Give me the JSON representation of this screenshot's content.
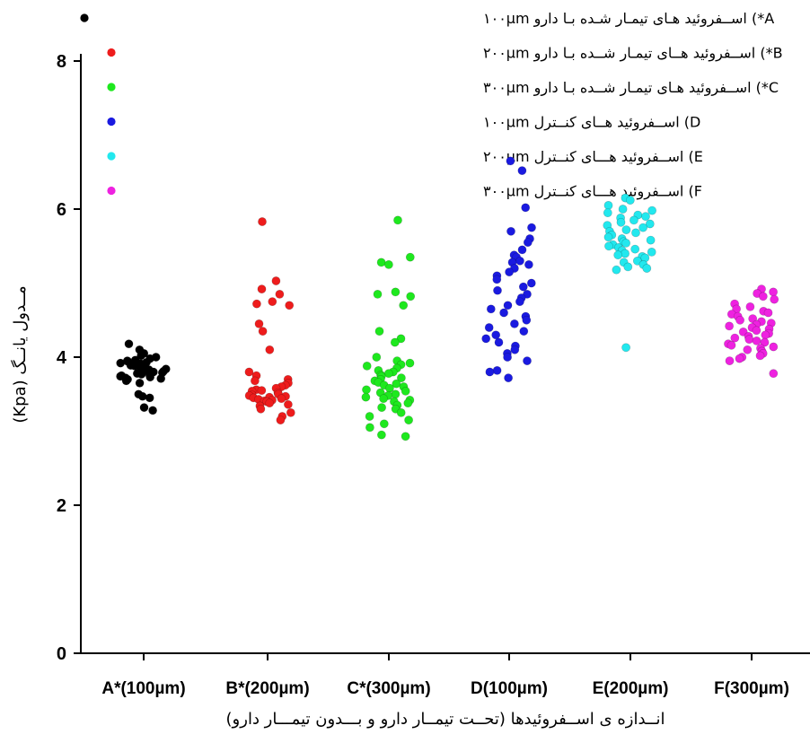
{
  "chart_data": {
    "type": "scatter",
    "xlabel": "انــدازه ی اســفروئیدها (تحــت تیمــار دارو و بـــدون تیمـــار دارو)",
    "ylabel": "مــدول یانــگ (Kpa)",
    "ylim": [
      0,
      8
    ],
    "yticks": [
      "0",
      "2",
      "4",
      "6",
      "8"
    ],
    "categories": [
      "A*(100µm)",
      "B*(200µm)",
      "C*(300µm)",
      "D(100µm)",
      "E(200µm)",
      "F(300µm)"
    ],
    "grid": false,
    "legend_position": "top-left",
    "series": [
      {
        "name": "A*) اســفروئید هـای تیمـار شـده بـا دارو ۱۰۰µm",
        "color": "#000000",
        "category": "A*(100µm)",
        "values": [
          4.18,
          4.1,
          4.05,
          4.02,
          4.0,
          3.98,
          3.96,
          3.95,
          3.94,
          3.93,
          3.92,
          3.91,
          3.9,
          3.89,
          3.88,
          3.87,
          3.86,
          3.85,
          3.84,
          3.83,
          3.82,
          3.81,
          3.8,
          3.79,
          3.78,
          3.77,
          3.76,
          3.75,
          3.74,
          3.73,
          3.72,
          3.71,
          3.7,
          3.68,
          3.65,
          3.5,
          3.47,
          3.45,
          3.32,
          3.28
        ]
      },
      {
        "name": "B*) اســفروئید هــای تیمـار شــده بـا دارو ۲۰۰µm",
        "color": "#ee1c1c",
        "category": "B*(200µm)",
        "values": [
          5.83,
          5.03,
          4.92,
          4.85,
          4.75,
          4.72,
          4.7,
          4.45,
          4.35,
          4.1,
          3.8,
          3.75,
          3.7,
          3.68,
          3.65,
          3.62,
          3.6,
          3.58,
          3.56,
          3.55,
          3.54,
          3.52,
          3.5,
          3.49,
          3.48,
          3.47,
          3.46,
          3.45,
          3.44,
          3.43,
          3.42,
          3.41,
          3.4,
          3.38,
          3.36,
          3.34,
          3.3,
          3.25,
          3.2,
          3.15
        ]
      },
      {
        "name": "C*) اســفروئید هـای تیمـار شــده بـا دارو ۳۰۰µm",
        "color": "#1ee81e",
        "category": "C*(300µm)",
        "values": [
          5.85,
          5.35,
          5.28,
          5.25,
          4.88,
          4.85,
          4.82,
          4.7,
          4.35,
          4.25,
          4.2,
          4.0,
          3.95,
          3.92,
          3.9,
          3.88,
          3.85,
          3.82,
          3.8,
          3.78,
          3.76,
          3.74,
          3.72,
          3.7,
          3.68,
          3.66,
          3.64,
          3.62,
          3.6,
          3.58,
          3.56,
          3.54,
          3.52,
          3.5,
          3.48,
          3.46,
          3.44,
          3.42,
          3.4,
          3.38,
          3.35,
          3.32,
          3.3,
          3.25,
          3.2,
          3.15,
          3.1,
          3.05,
          2.95,
          2.93
        ]
      },
      {
        "name": "D) اســفروئید هــای کنــترل ۱۰۰µm",
        "color": "#1a1ae0",
        "category": "D(100µm)",
        "values": [
          6.65,
          6.52,
          6.02,
          5.75,
          5.7,
          5.6,
          5.55,
          5.45,
          5.38,
          5.35,
          5.3,
          5.28,
          5.25,
          5.2,
          5.15,
          5.1,
          5.05,
          5.0,
          4.95,
          4.9,
          4.85,
          4.8,
          4.75,
          4.7,
          4.65,
          4.6,
          4.55,
          4.5,
          4.45,
          4.4,
          4.35,
          4.3,
          4.25,
          4.2,
          4.15,
          4.1,
          4.05,
          4.0,
          3.95,
          3.82,
          3.8,
          3.72
        ]
      },
      {
        "name": "E) اســفروئید هـــای کنــترل ۲۰۰µm",
        "color": "#22e8ee",
        "category": "E(200µm)",
        "values": [
          6.15,
          6.12,
          6.05,
          6.0,
          5.98,
          5.95,
          5.92,
          5.9,
          5.88,
          5.85,
          5.82,
          5.8,
          5.78,
          5.75,
          5.72,
          5.7,
          5.68,
          5.65,
          5.62,
          5.6,
          5.58,
          5.56,
          5.54,
          5.52,
          5.5,
          5.48,
          5.46,
          5.44,
          5.42,
          5.4,
          5.38,
          5.36,
          5.34,
          5.3,
          5.28,
          5.25,
          5.22,
          5.2,
          5.18,
          4.13
        ]
      },
      {
        "name": "F) اســفروئید هـــای کنــترل ۳۰۰µm",
        "color": "#ee22e0",
        "category": "F(300µm)",
        "values": [
          4.92,
          4.88,
          4.86,
          4.82,
          4.78,
          4.72,
          4.68,
          4.65,
          4.62,
          4.6,
          4.58,
          4.55,
          4.52,
          4.5,
          4.48,
          4.46,
          4.44,
          4.42,
          4.4,
          4.38,
          4.36,
          4.34,
          4.32,
          4.3,
          4.28,
          4.26,
          4.24,
          4.22,
          4.2,
          4.18,
          4.16,
          4.14,
          4.12,
          4.1,
          4.08,
          4.05,
          4.02,
          4.0,
          3.98,
          3.95,
          3.78
        ]
      }
    ]
  }
}
